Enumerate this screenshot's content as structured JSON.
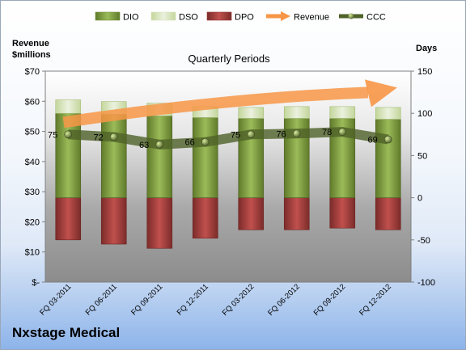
{
  "chart_data": {
    "type": "bar",
    "subtitle": "Quarterly Periods",
    "company": "Nxstage Medical",
    "left_axis": {
      "label_line1": "Revenue",
      "label_line2": "$millions",
      "ticks": [
        "$-",
        "$10",
        "$20",
        "$30",
        "$40",
        "$50",
        "$60",
        "$70"
      ],
      "ylim": [
        0,
        70
      ]
    },
    "right_axis": {
      "label": "Days",
      "ticks": [
        "-100",
        "-50",
        "0",
        "50",
        "100",
        "150"
      ],
      "ylim": [
        -100,
        150
      ]
    },
    "legend": {
      "position": "top",
      "items": [
        {
          "label": "DIO",
          "kind": "bar",
          "color": "#77933c"
        },
        {
          "label": "DSO",
          "kind": "bar",
          "color": "#d7e4bd"
        },
        {
          "label": "DPO",
          "kind": "bar",
          "color": "#953735"
        },
        {
          "label": "Revenue",
          "kind": "arrow",
          "color": "#f79646"
        },
        {
          "label": "CCC",
          "kind": "line",
          "color": "#4f6228"
        }
      ]
    },
    "categories": [
      "FQ 03-2011",
      "FQ 06-2011",
      "FQ 09-2011",
      "FQ 12-2011",
      "FQ 03-2012",
      "FQ 06-2012",
      "FQ 09-2012",
      "FQ 12-2012"
    ],
    "series": [
      {
        "name": "DIO",
        "values": [
          100,
          99,
          97,
          95,
          94,
          94,
          94,
          93
        ]
      },
      {
        "name": "DSO",
        "values": [
          16,
          15,
          15,
          13,
          13,
          14,
          14,
          14
        ]
      },
      {
        "name": "DPO",
        "values": [
          -50,
          -55,
          -60,
          -48,
          -38,
          -38,
          -36,
          -38
        ]
      },
      {
        "name": "CCC",
        "values": [
          75,
          72,
          63,
          66,
          75,
          76,
          78,
          69
        ]
      }
    ],
    "ccc_labels": [
      "75",
      "72",
      "63",
      "66",
      "75",
      "76",
      "78",
      "69"
    ],
    "revenue_trend": {
      "start": 53,
      "end": 64
    },
    "plot_fill": "#8c8c8c"
  }
}
